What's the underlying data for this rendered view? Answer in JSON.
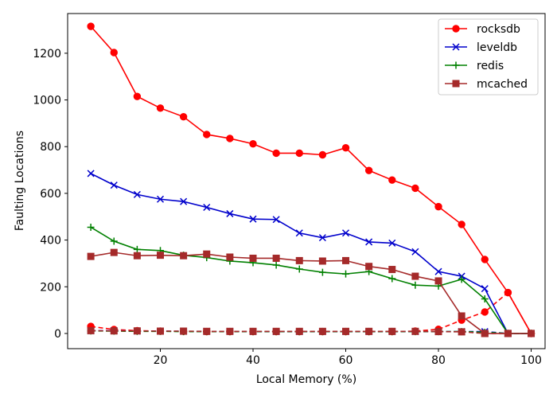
{
  "chart_data": {
    "type": "line",
    "xlabel": "Local Memory (%)",
    "ylabel": "Faulting Locations",
    "xlim": [
      0,
      103
    ],
    "ylim": [
      -65,
      1370
    ],
    "xticks": [
      20,
      40,
      60,
      80,
      100
    ],
    "yticks": [
      0,
      200,
      400,
      600,
      800,
      1000,
      1200
    ],
    "grid": false,
    "legend_position": "top-right",
    "x": [
      5,
      10,
      15,
      20,
      25,
      30,
      35,
      40,
      45,
      50,
      55,
      60,
      65,
      70,
      75,
      80,
      85,
      90,
      95,
      100
    ],
    "series": [
      {
        "name": "rocksdb",
        "color": "#ff0000",
        "marker": "circle",
        "values": [
          1315,
          1203,
          1015,
          965,
          928,
          852,
          835,
          812,
          772,
          772,
          765,
          795,
          698,
          657,
          622,
          543,
          467,
          317,
          175,
          0
        ]
      },
      {
        "name": "leveldb",
        "color": "#0000cc",
        "marker": "x",
        "values": [
          685,
          635,
          595,
          575,
          565,
          540,
          513,
          490,
          488,
          430,
          410,
          430,
          392,
          387,
          350,
          265,
          245,
          192,
          0,
          0
        ]
      },
      {
        "name": "redis",
        "color": "#008000",
        "marker": "plus",
        "values": [
          455,
          395,
          360,
          355,
          335,
          325,
          310,
          303,
          293,
          276,
          262,
          255,
          265,
          235,
          207,
          203,
          232,
          148,
          0,
          0
        ]
      },
      {
        "name": "mcached",
        "color": "#a52a2a",
        "marker": "square",
        "values": [
          330,
          347,
          333,
          335,
          333,
          340,
          327,
          322,
          322,
          312,
          310,
          312,
          287,
          274,
          245,
          225,
          75,
          0,
          0,
          0
        ]
      }
    ],
    "dashed_series": [
      {
        "color": "#ff0000",
        "marker": "circle",
        "values": [
          30,
          17,
          12,
          10,
          9,
          8,
          8,
          8,
          8,
          8,
          8,
          8,
          8,
          8,
          10,
          18,
          57,
          92,
          175,
          0
        ]
      },
      {
        "color": "#0000cc",
        "marker": "x",
        "values": [
          12,
          12,
          10,
          10,
          9,
          9,
          9,
          8,
          8,
          8,
          8,
          8,
          8,
          8,
          8,
          8,
          8,
          8,
          0,
          0
        ]
      },
      {
        "color": "#008000",
        "marker": "plus",
        "values": [
          11,
          10,
          9,
          9,
          8,
          8,
          8,
          8,
          8,
          8,
          8,
          8,
          8,
          8,
          8,
          8,
          8,
          5,
          0,
          0
        ]
      },
      {
        "color": "#a52a2a",
        "marker": "square",
        "values": [
          12,
          11,
          11,
          10,
          10,
          9,
          9,
          9,
          9,
          9,
          9,
          9,
          9,
          9,
          9,
          8,
          7,
          0,
          0,
          0
        ]
      }
    ]
  }
}
